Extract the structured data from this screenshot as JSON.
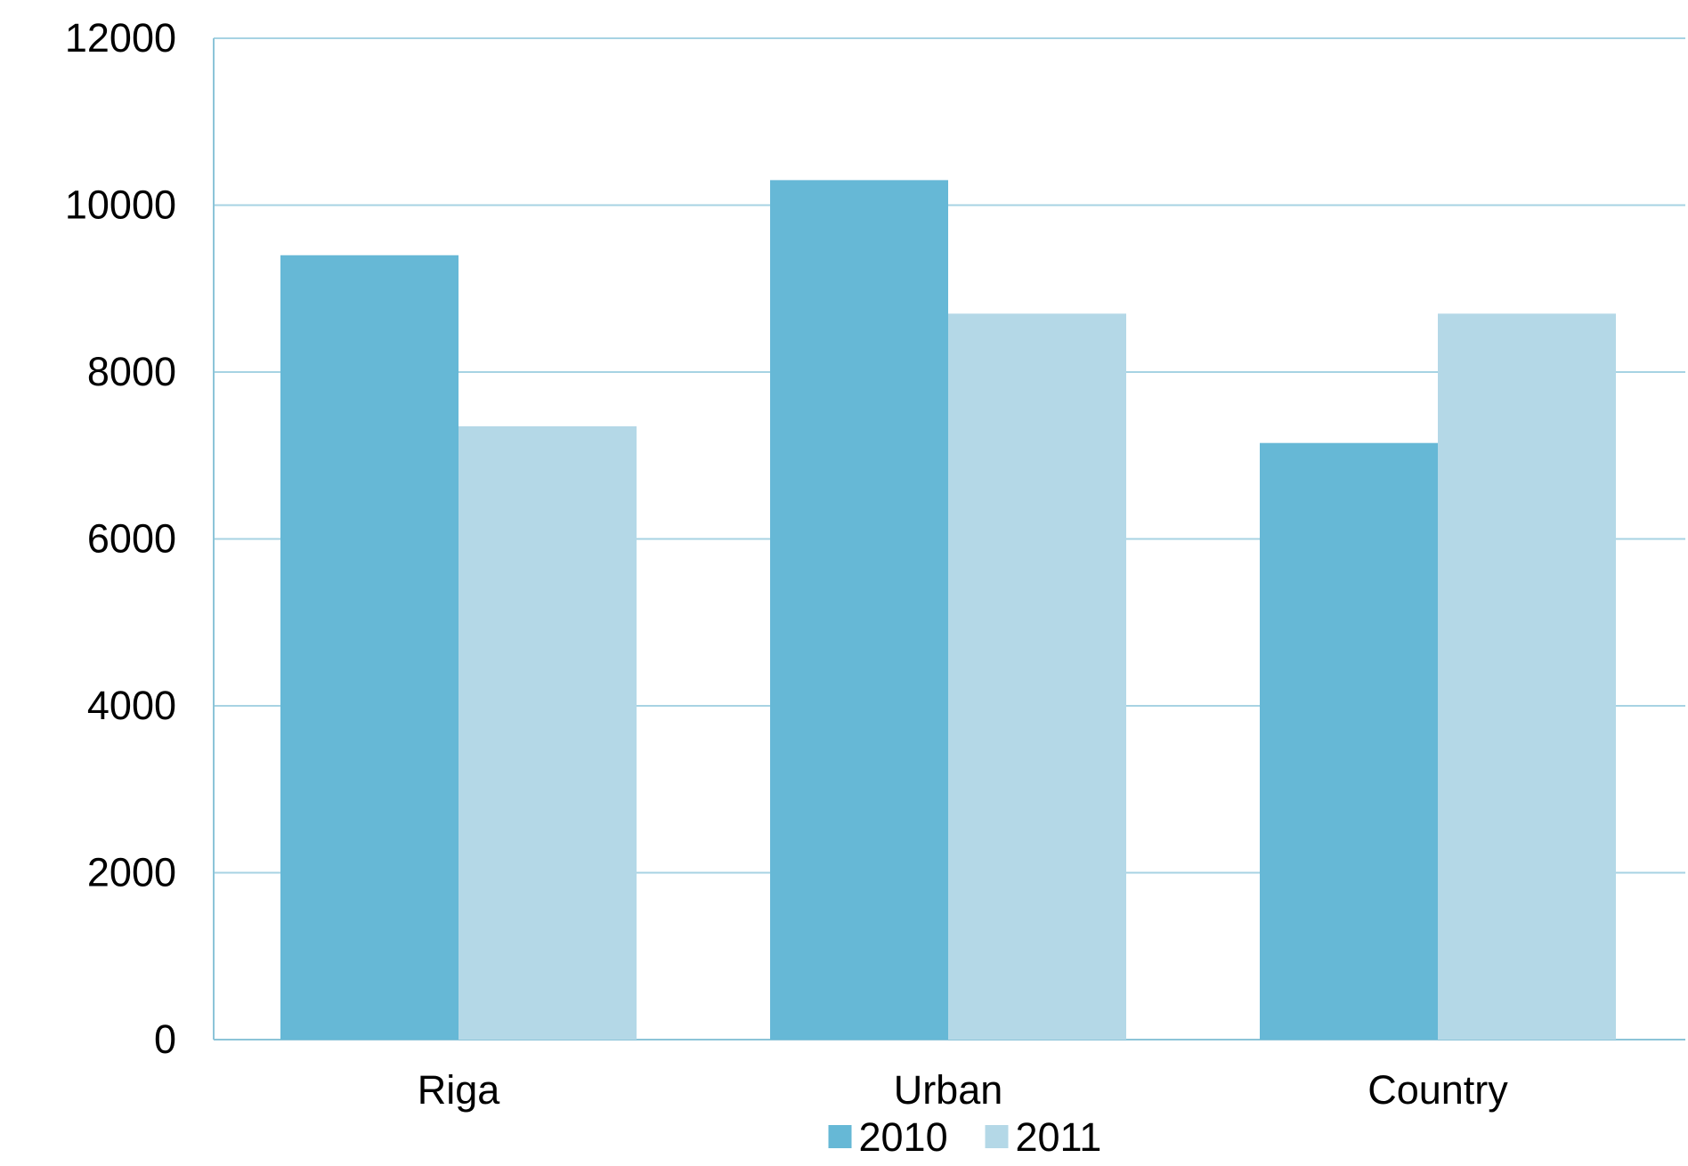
{
  "chart_data": {
    "type": "bar",
    "categories": [
      "Riga",
      "Urban",
      "Country"
    ],
    "series": [
      {
        "name": "2010",
        "values": [
          9400,
          10300,
          7150
        ],
        "color": "#66b8d6"
      },
      {
        "name": "2011",
        "values": [
          7350,
          8700,
          8700
        ],
        "color": "#b4d8e7"
      }
    ],
    "ylim": [
      0,
      12000
    ],
    "yticks": [
      0,
      2000,
      4000,
      6000,
      8000,
      10000,
      12000
    ],
    "grid": true,
    "grid_color": "#a7d3e3",
    "axis_color": "#8cc4d8",
    "legend": "bottom-center"
  }
}
